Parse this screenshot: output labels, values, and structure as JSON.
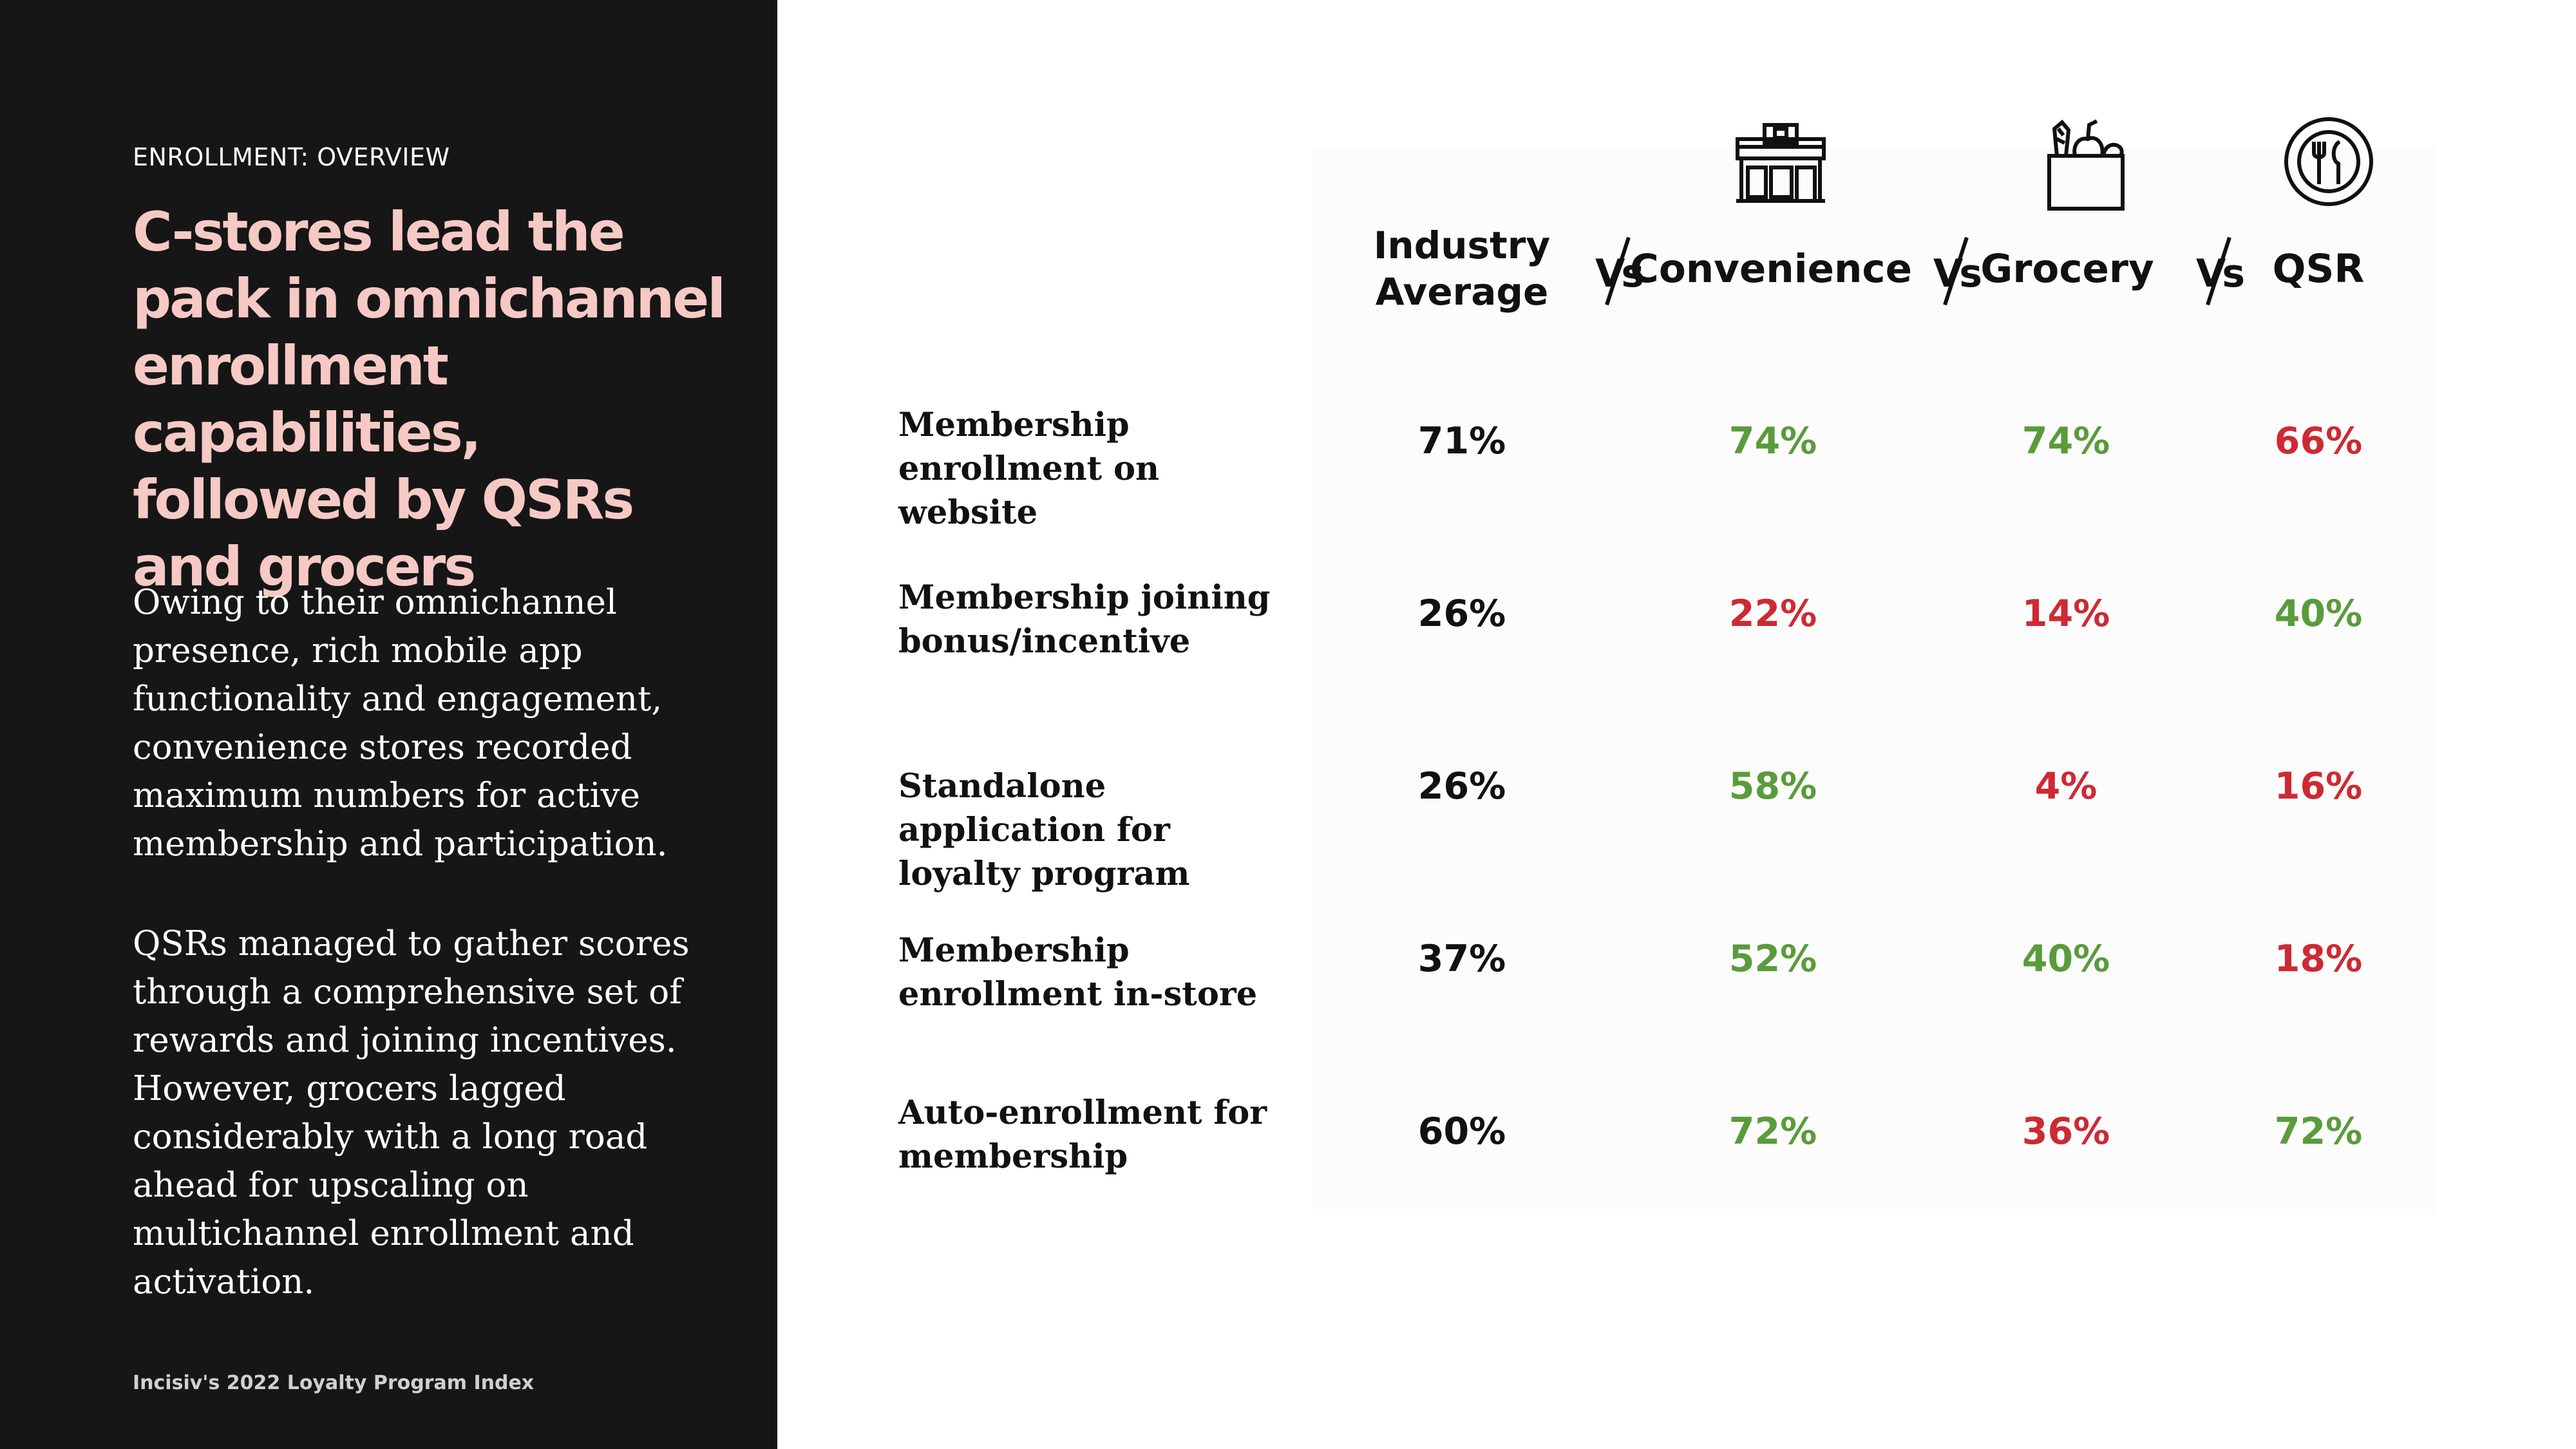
{
  "left": {
    "section_label": "ENROLLMENT: OVERVIEW",
    "title": "C-stores lead the pack in omnichannel enrollment capabilities, followed by QSRs and grocers",
    "paragraph1": "Owing to their omnichannel presence, rich mobile app functionality and engagement, convenience stores recorded maximum numbers for active membership and participation.",
    "paragraph2": "QSRs managed to gather scores through a comprehensive set of rewards and joining incentives. However, grocers lagged considerably with a long road ahead for upscaling on multichannel enrollment and activation.",
    "footer": "Incisiv's 2022  Loyalty Program  Index"
  },
  "colors": {
    "positive": "#5a9b3b",
    "negative": "#cd2a33",
    "neutral": "#111111",
    "title": "#f6c9c5",
    "left_bg": "#161616"
  },
  "table": {
    "columns": {
      "industry_line1": "Industry",
      "industry_line2": "Average",
      "vs": "Vs",
      "convenience": "Convenience",
      "grocery": "Grocery",
      "qsr": "QSR"
    },
    "icons": {
      "convenience": "store-icon",
      "grocery": "grocery-bag-icon",
      "qsr": "plate-cutlery-icon"
    },
    "rows": [
      {
        "label": "Membership enrollment on website",
        "industry": "71%",
        "convenience": "74%",
        "grocery": "74%",
        "qsr": "66%",
        "convenience_status": "positive",
        "grocery_status": "positive",
        "qsr_status": "negative"
      },
      {
        "label": "Membership joining bonus/incentive",
        "industry": "26%",
        "convenience": "22%",
        "grocery": "14%",
        "qsr": "40%",
        "convenience_status": "negative",
        "grocery_status": "negative",
        "qsr_status": "positive"
      },
      {
        "label": "Standalone application for loyalty program",
        "industry": "26%",
        "convenience": "58%",
        "grocery": "4%",
        "qsr": "16%",
        "convenience_status": "positive",
        "grocery_status": "negative",
        "qsr_status": "negative"
      },
      {
        "label": "Membership enrollment in-store",
        "industry": "37%",
        "convenience": "52%",
        "grocery": "40%",
        "qsr": "18%",
        "convenience_status": "positive",
        "grocery_status": "positive",
        "qsr_status": "negative"
      },
      {
        "label": "Auto-enrollment for membership",
        "industry": "60%",
        "convenience": "72%",
        "grocery": "36%",
        "qsr": "72%",
        "convenience_status": "positive",
        "grocery_status": "negative",
        "qsr_status": "positive"
      }
    ]
  }
}
